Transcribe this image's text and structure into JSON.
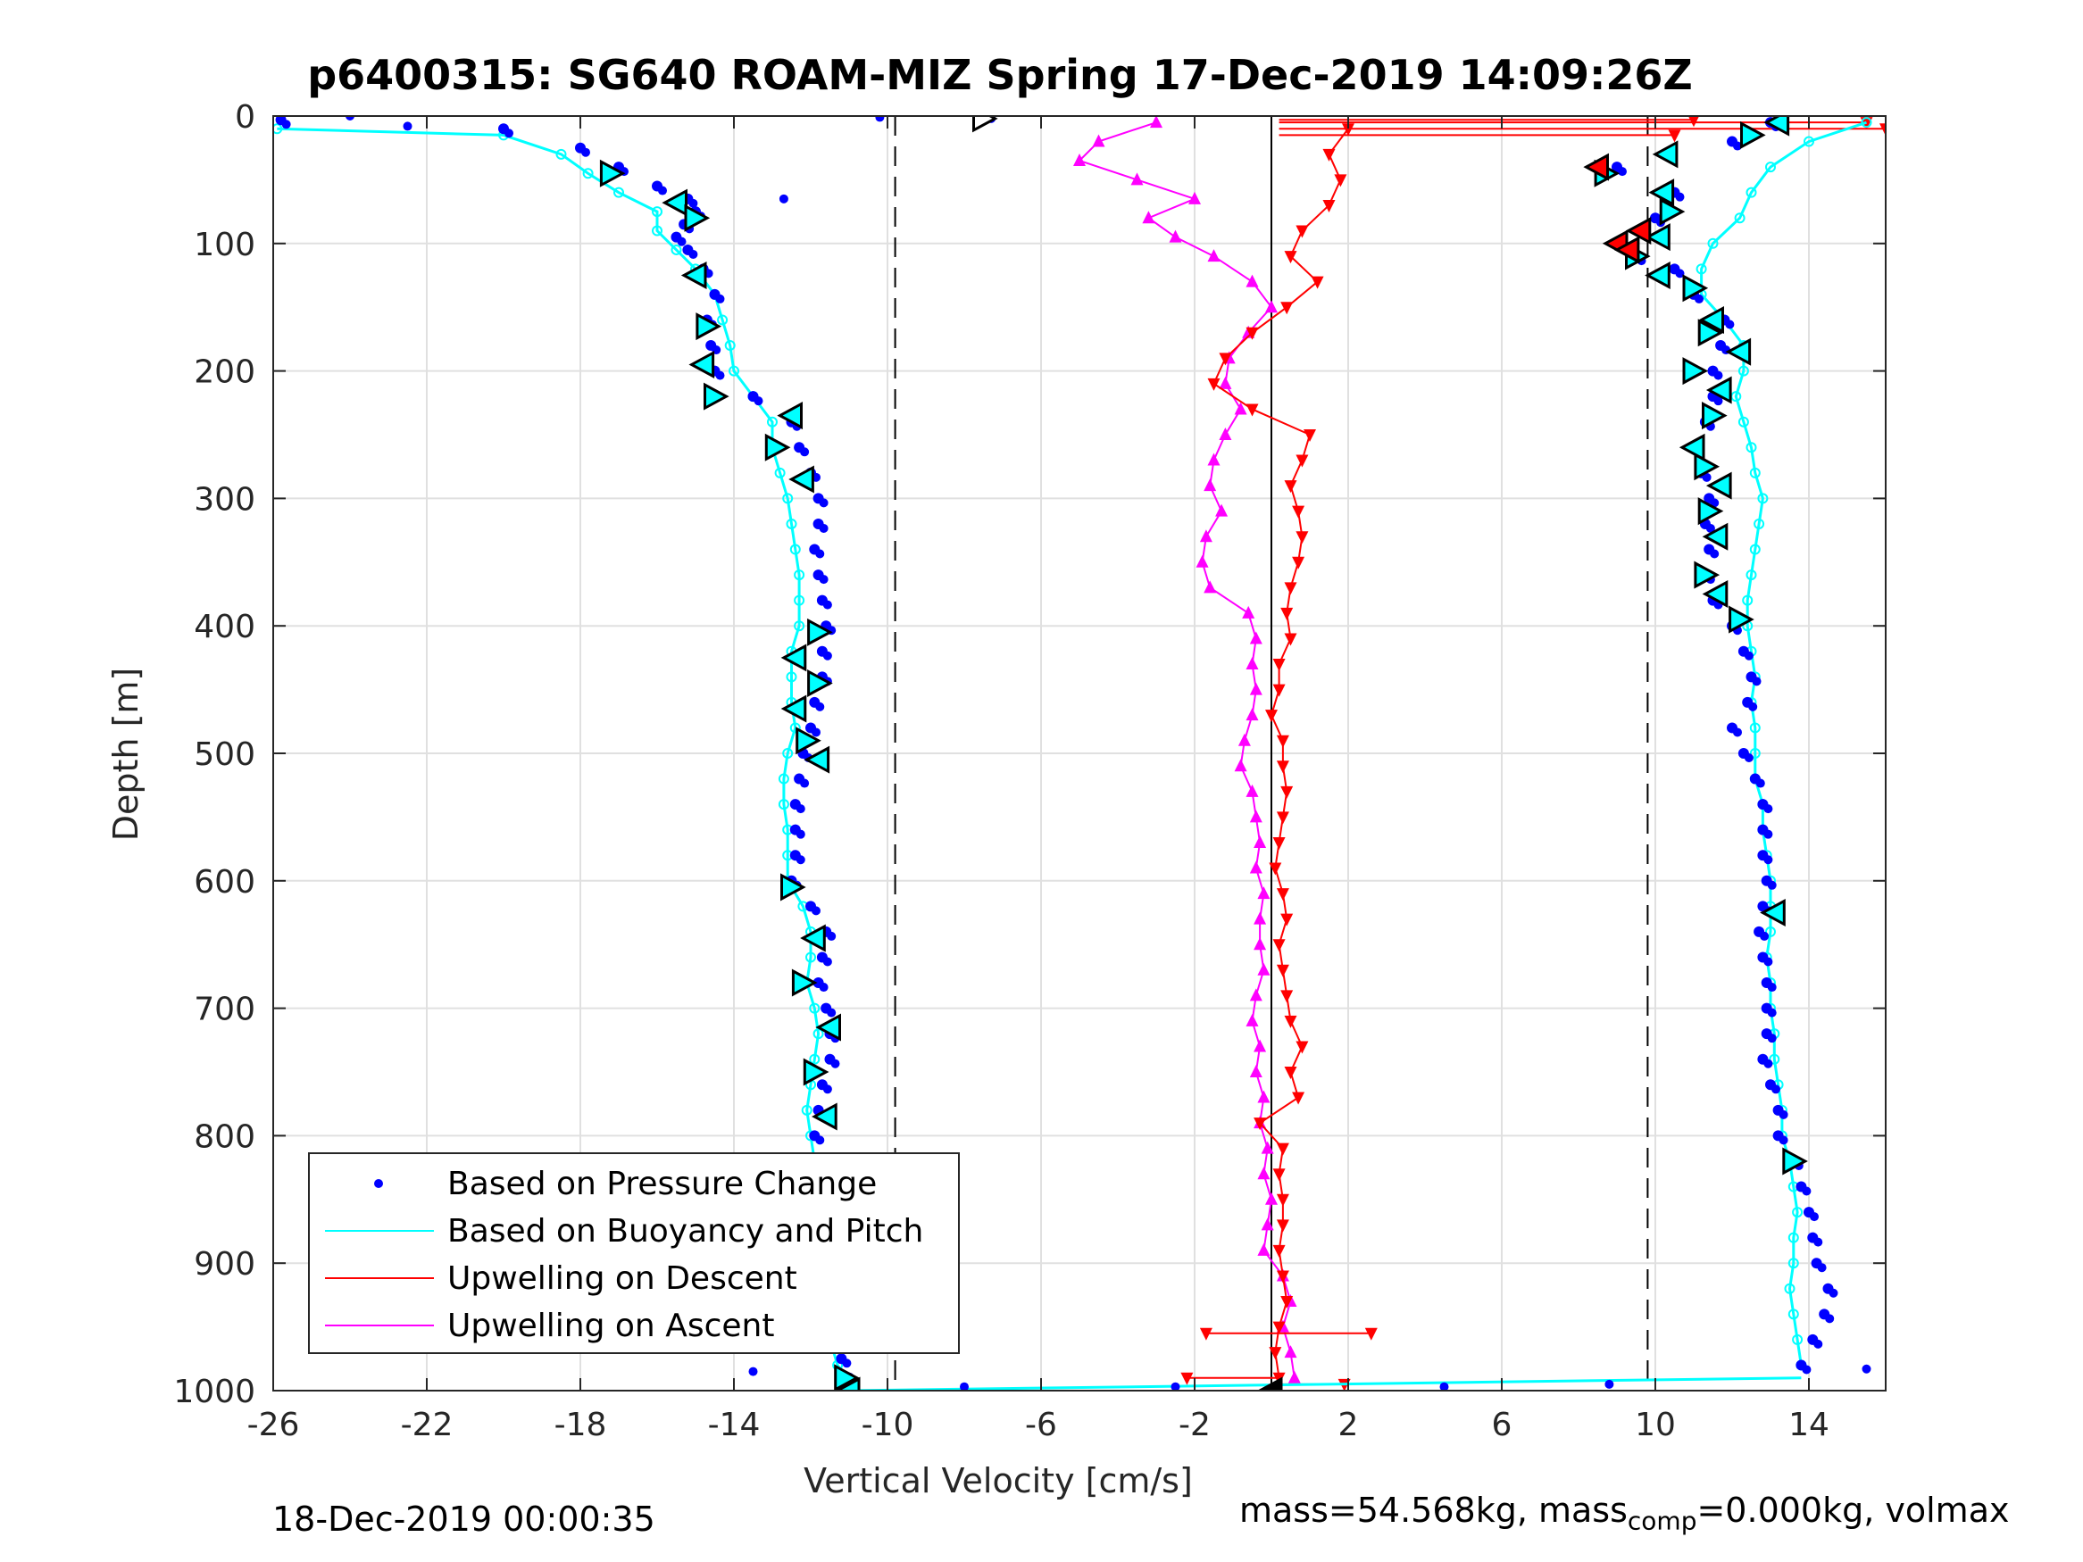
{
  "chart_data": {
    "type": "scatter",
    "title": "p6400315: SG640 ROAM-MIZ Spring 17-Dec-2019 14:09:26Z",
    "xlabel": "Vertical Velocity [cm/s]",
    "ylabel": "Depth [m]",
    "xlim": [
      -26,
      16
    ],
    "ylim": [
      0,
      1000
    ],
    "y_reversed": true,
    "grid": true,
    "xticks": [
      -26,
      -22,
      -18,
      -14,
      -10,
      -6,
      -2,
      2,
      6,
      10,
      14
    ],
    "yticks": [
      0,
      100,
      200,
      300,
      400,
      500,
      600,
      700,
      800,
      900,
      1000
    ],
    "vlines_dashed": [
      -9.8,
      9.8
    ],
    "vline_solid": 0,
    "legend_position": "bottom-left",
    "series": [
      {
        "name": "Based on Pressure Change",
        "color": "#0000ff",
        "segments": [
          {
            "depth": [
              3,
              10,
              25,
              40,
              55,
              65,
              75,
              85,
              95,
              105,
              120,
              140,
              160,
              180,
              200,
              220,
              240,
              260,
              280,
              300,
              320,
              340,
              360,
              380,
              400,
              420,
              440,
              460,
              480,
              500,
              520,
              540,
              560,
              580,
              600,
              620,
              640,
              660,
              680,
              700,
              720,
              740,
              760,
              780,
              800,
              820,
              840,
              860,
              880,
              900,
              920,
              940,
              960,
              975,
              990
            ],
            "velocity": [
              -25.8,
              -20,
              -18,
              -17,
              -16,
              -15.2,
              -15,
              -15.3,
              -15.5,
              -15.2,
              -14.8,
              -14.5,
              -14.7,
              -14.6,
              -14.5,
              -13.5,
              -12.5,
              -12.3,
              -12,
              -11.8,
              -11.8,
              -11.9,
              -11.8,
              -11.7,
              -11.6,
              -11.7,
              -11.7,
              -11.9,
              -12,
              -12.2,
              -12.3,
              -12.4,
              -12.4,
              -12.4,
              -12.5,
              -12,
              -11.6,
              -11.7,
              -11.8,
              -11.6,
              -11.5,
              -11.5,
              -11.7,
              -11.8,
              -11.9,
              -11.9,
              -11.7,
              -11.6,
              -11.6,
              -11.5,
              -11.3,
              -11.2,
              -11.4,
              -11.2,
              -11
            ]
          },
          {
            "depth": [
              5,
              20,
              40,
              60,
              80,
              100,
              110,
              120,
              140,
              160,
              180,
              200,
              220,
              240,
              260,
              280,
              300,
              320,
              340,
              360,
              380,
              400,
              420,
              440,
              460,
              480,
              500,
              520,
              540,
              560,
              580,
              600,
              620,
              640,
              660,
              680,
              700,
              720,
              740,
              760,
              780,
              800,
              820,
              840,
              860,
              880,
              900,
              920,
              940,
              960,
              980
            ],
            "velocity": [
              13,
              12,
              9,
              10.5,
              10,
              9,
              9.5,
              10.5,
              11,
              11.8,
              11.7,
              11.5,
              11.5,
              11.3,
              11,
              11.2,
              11.4,
              11.3,
              11.4,
              11.3,
              11.5,
              12,
              12.3,
              12.5,
              12.4,
              12,
              12.3,
              12.6,
              12.8,
              12.8,
              12.8,
              12.9,
              12.8,
              12.7,
              12.8,
              12.9,
              12.9,
              12.9,
              12.8,
              13,
              13.2,
              13.2,
              13.6,
              13.8,
              14,
              14.1,
              14.2,
              14.5,
              14.4,
              14.1,
              13.8
            ]
          }
        ],
        "outliers": [
          [
            -24,
            0
          ],
          [
            -22.5,
            8
          ],
          [
            -10.2,
            1
          ],
          [
            -7.3,
            2
          ],
          [
            -9,
            960
          ],
          [
            -13.5,
            985
          ],
          [
            -8,
            997
          ],
          [
            -2.5,
            997
          ],
          [
            4.5,
            997
          ],
          [
            8.8,
            995
          ],
          [
            15.5,
            983
          ],
          [
            -12.7,
            65
          ]
        ]
      },
      {
        "name": "Based on Buoyancy and Pitch",
        "color": "#00ffff",
        "segments": [
          {
            "depth": [
              10,
              15,
              30,
              45,
              60,
              75,
              90,
              105,
              120,
              140,
              160,
              180,
              200,
              220,
              240,
              260,
              280,
              300,
              320,
              340,
              360,
              380,
              400,
              420,
              440,
              460,
              480,
              500,
              520,
              540,
              560,
              580,
              600,
              620,
              640,
              660,
              680,
              700,
              720,
              740,
              760,
              780,
              800,
              820,
              840,
              860,
              880,
              900,
              920,
              940,
              960,
              980,
              993
            ],
            "velocity": [
              -25.9,
              -20,
              -18.5,
              -17.8,
              -17,
              -16,
              -16,
              -15.5,
              -15,
              -14.5,
              -14.3,
              -14.1,
              -14,
              -13.5,
              -13,
              -13,
              -12.8,
              -12.6,
              -12.5,
              -12.4,
              -12.3,
              -12.3,
              -12.3,
              -12.5,
              -12.5,
              -12.5,
              -12.4,
              -12.6,
              -12.7,
              -12.7,
              -12.6,
              -12.6,
              -12.6,
              -12.2,
              -12,
              -12,
              -12.1,
              -11.9,
              -11.8,
              -11.9,
              -12,
              -12.1,
              -12,
              -11.9,
              -11.9,
              -11.7,
              -11.6,
              -11.7,
              -11.9,
              -11.8,
              -11.5,
              -11.3,
              -11
            ]
          },
          {
            "depth": [
              5,
              20,
              40,
              60,
              80,
              100,
              120,
              140,
              160,
              180,
              200,
              220,
              240,
              260,
              280,
              300,
              320,
              340,
              360,
              380,
              400,
              420,
              440,
              460,
              480,
              500,
              520,
              540,
              560,
              580,
              600,
              620,
              640,
              660,
              680,
              700,
              720,
              740,
              760,
              780,
              800,
              820,
              840,
              860,
              880,
              900,
              920,
              940,
              960,
              980
            ],
            "velocity": [
              15.5,
              14,
              13,
              12.5,
              12.2,
              11.5,
              11.2,
              11.2,
              11.8,
              12.3,
              12.3,
              12.1,
              12.3,
              12.5,
              12.6,
              12.8,
              12.7,
              12.6,
              12.5,
              12.4,
              12.4,
              12.5,
              12.6,
              12.5,
              12.6,
              12.6,
              12.6,
              12.8,
              12.8,
              12.9,
              13,
              13,
              13,
              12.9,
              13,
              13,
              13.1,
              13.1,
              13.2,
              13.3,
              13.3,
              13.5,
              13.6,
              13.7,
              13.6,
              13.6,
              13.5,
              13.6,
              13.7,
              13.8
            ]
          }
        ],
        "bottom_line": {
          "depth": [
            1000,
            990
          ],
          "velocity": [
            -11,
            13.8
          ]
        }
      },
      {
        "name": "Upwelling on Descent",
        "color": "#ff0000",
        "depth": [
          10,
          30,
          50,
          70,
          90,
          110,
          130,
          150,
          170,
          190,
          210,
          230,
          250,
          270,
          290,
          310,
          330,
          350,
          370,
          390,
          410,
          430,
          450,
          470,
          490,
          510,
          530,
          550,
          570,
          590,
          610,
          630,
          650,
          670,
          690,
          710,
          730,
          750,
          770,
          790,
          810,
          830,
          850,
          870,
          890,
          910,
          930,
          950,
          970,
          990
        ],
        "velocity": [
          2,
          1.5,
          1.8,
          1.5,
          0.8,
          0.5,
          1.2,
          0.4,
          -0.5,
          -1.2,
          -1.5,
          -0.5,
          1,
          0.8,
          0.5,
          0.7,
          0.8,
          0.7,
          0.5,
          0.4,
          0.5,
          0.2,
          0.2,
          0,
          0.3,
          0.3,
          0.4,
          0.3,
          0.2,
          0.1,
          0.3,
          0.4,
          0.2,
          0.3,
          0.4,
          0.5,
          0.8,
          0.5,
          0.7,
          -0.3,
          0.3,
          0.2,
          0.3,
          0.3,
          0.2,
          0.3,
          0.4,
          0.2,
          0.1,
          0.2
        ],
        "spikes": [
          [
            15,
            10.5
          ],
          [
            10,
            16
          ],
          [
            5,
            15.5
          ],
          [
            3,
            11
          ],
          [
            955,
            -1.7
          ],
          [
            955,
            2.6
          ],
          [
            990,
            -2.2
          ],
          [
            995,
            1.9
          ]
        ],
        "descent_markers": [
          [
            40,
            8.5
          ],
          [
            100,
            9
          ],
          [
            90,
            9.6
          ],
          [
            105,
            9.3
          ]
        ]
      },
      {
        "name": "Upwelling on Ascent",
        "color": "#ff00ff",
        "depth": [
          5,
          20,
          35,
          50,
          65,
          80,
          95,
          110,
          130,
          150,
          170,
          190,
          210,
          230,
          250,
          270,
          290,
          310,
          330,
          350,
          370,
          390,
          410,
          430,
          450,
          470,
          490,
          510,
          530,
          550,
          570,
          590,
          610,
          630,
          650,
          670,
          690,
          710,
          730,
          750,
          770,
          790,
          810,
          830,
          850,
          870,
          890,
          910,
          930,
          950,
          970,
          990
        ],
        "velocity": [
          -3,
          -4.5,
          -5,
          -3.5,
          -2,
          -3.2,
          -2.5,
          -1.5,
          -0.5,
          0,
          -0.6,
          -1.1,
          -1.2,
          -0.8,
          -1.2,
          -1.5,
          -1.6,
          -1.3,
          -1.7,
          -1.8,
          -1.6,
          -0.6,
          -0.4,
          -0.5,
          -0.4,
          -0.5,
          -0.7,
          -0.8,
          -0.5,
          -0.4,
          -0.3,
          -0.4,
          -0.2,
          -0.3,
          -0.3,
          -0.2,
          -0.4,
          -0.5,
          -0.3,
          -0.4,
          -0.2,
          -0.3,
          -0.1,
          -0.2,
          0,
          -0.1,
          -0.2,
          0.3,
          0.5,
          0.3,
          0.5,
          0.6
        ]
      }
    ],
    "triangle_markers": {
      "left_profile": [
        [
          45,
          -17.2
        ],
        [
          68,
          -15.5
        ],
        [
          80,
          -15
        ],
        [
          125,
          -15
        ],
        [
          165,
          -14.7
        ],
        [
          195,
          -14.8
        ],
        [
          220,
          -14.5
        ],
        [
          235,
          -12.5
        ],
        [
          260,
          -12.9
        ],
        [
          285,
          -12.2
        ],
        [
          405,
          -11.8
        ],
        [
          425,
          -12.4
        ],
        [
          445,
          -11.8
        ],
        [
          465,
          -12.4
        ],
        [
          490,
          -12.1
        ],
        [
          505,
          -11.8
        ],
        [
          605,
          -12.5
        ],
        [
          645,
          -11.9
        ],
        [
          680,
          -12.2
        ],
        [
          715,
          -11.5
        ],
        [
          750,
          -11.9
        ],
        [
          785,
          -11.6
        ],
        [
          850,
          -11.9
        ],
        [
          885,
          -11.6
        ],
        [
          920,
          -11.9
        ],
        [
          955,
          -10.8
        ],
        [
          990,
          -11.1
        ],
        [
          1000,
          -11
        ]
      ],
      "right_profile": [
        [
          5,
          13.2
        ],
        [
          15,
          12.5
        ],
        [
          30,
          10.3
        ],
        [
          45,
          8.7
        ],
        [
          60,
          10.2
        ],
        [
          75,
          10.4
        ],
        [
          95,
          10.1
        ],
        [
          110,
          9.5
        ],
        [
          125,
          10.1
        ],
        [
          135,
          11
        ],
        [
          160,
          11.5
        ],
        [
          170,
          11.4
        ],
        [
          185,
          12.2
        ],
        [
          200,
          11
        ],
        [
          215,
          11.7
        ],
        [
          235,
          11.5
        ],
        [
          260,
          11
        ],
        [
          275,
          11.3
        ],
        [
          290,
          11.7
        ],
        [
          310,
          11.4
        ],
        [
          330,
          11.6
        ],
        [
          360,
          11.3
        ],
        [
          375,
          11.6
        ],
        [
          395,
          12.2
        ],
        [
          625,
          13.1
        ],
        [
          820,
          13.6
        ]
      ],
      "surface": [
        [
          2,
          -7.5
        ],
        [
          1000,
          0
        ]
      ]
    },
    "legend": {
      "entries": [
        "Based on Pressure Change",
        "Based on Buoyancy and Pitch",
        "Upwelling on Descent",
        "Upwelling on Ascent"
      ]
    }
  },
  "footer": {
    "date": "18-Dec-2019 00:00:35",
    "mass_prefix": "mass=54.568kg, mass",
    "mass_sub": "comp",
    "mass_suffix": "=0.000kg, volmax"
  }
}
